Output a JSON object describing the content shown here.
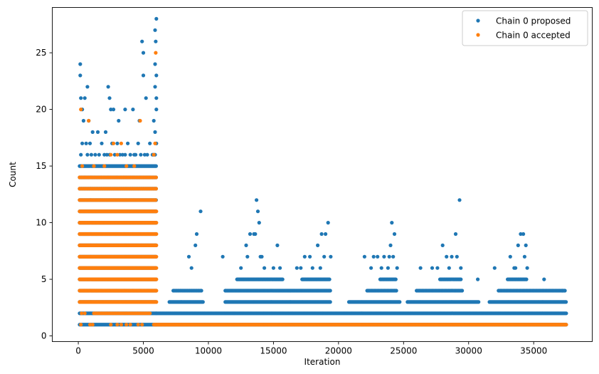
{
  "chart_data": {
    "type": "scatter",
    "title": "",
    "xlabel": "Iteration",
    "ylabel": "Count",
    "xlim": [
      -2000,
      39500
    ],
    "ylim": [
      -0.5,
      29
    ],
    "xticks": [
      0,
      5000,
      10000,
      15000,
      20000,
      25000,
      30000,
      35000
    ],
    "yticks": [
      0,
      5,
      10,
      15,
      20,
      25
    ],
    "grid": false,
    "legend_position": "top-right",
    "series": [
      {
        "name": "Chain 0 proposed",
        "color": "#1f77b4",
        "bands": [
          {
            "x_range": [
              100,
              6000
            ],
            "values": [
              1,
              2,
              3,
              4,
              5,
              6,
              7,
              8,
              9,
              10,
              11,
              12,
              13,
              14,
              15
            ],
            "step": 60
          },
          {
            "x_range": [
              6000,
              37500
            ],
            "values": [
              1,
              2
            ],
            "step": 60
          },
          {
            "x_range": [
              7000,
              9600
            ],
            "values": [
              3
            ],
            "step": 60
          },
          {
            "x_range": [
              7300,
              9500
            ],
            "values": [
              4
            ],
            "step": 90
          },
          {
            "x_range": [
              11300,
              16300
            ],
            "values": [
              3,
              4
            ],
            "step": 60
          },
          {
            "x_range": [
              12200,
              15700
            ],
            "values": [
              5
            ],
            "step": 70
          },
          {
            "x_range": [
              16300,
              19400
            ],
            "values": [
              3,
              4
            ],
            "step": 60
          },
          {
            "x_range": [
              17200,
              19300
            ],
            "values": [
              5
            ],
            "step": 70
          },
          {
            "x_range": [
              20800,
              24700
            ],
            "values": [
              3
            ],
            "step": 60
          },
          {
            "x_range": [
              22200,
              24500
            ],
            "values": [
              4
            ],
            "step": 70
          },
          {
            "x_range": [
              23200,
              24400
            ],
            "values": [
              5
            ],
            "step": 80
          },
          {
            "x_range": [
              25300,
              30800
            ],
            "values": [
              3
            ],
            "step": 60
          },
          {
            "x_range": [
              26000,
              29500
            ],
            "values": [
              4
            ],
            "step": 70
          },
          {
            "x_range": [
              27800,
              29400
            ],
            "values": [
              5
            ],
            "step": 80
          },
          {
            "x_range": [
              31600,
              37500
            ],
            "values": [
              3
            ],
            "step": 60
          },
          {
            "x_range": [
              32300,
              37400
            ],
            "values": [
              4
            ],
            "step": 70
          },
          {
            "x_range": [
              33000,
              34500
            ],
            "values": [
              5
            ],
            "step": 80
          }
        ],
        "points": [
          [
            150,
            24
          ],
          [
            150,
            23
          ],
          [
            700,
            22
          ],
          [
            2300,
            22
          ],
          [
            4900,
            26
          ],
          [
            5000,
            25
          ],
          [
            6000,
            28
          ],
          [
            5900,
            27
          ],
          [
            5950,
            26
          ],
          [
            5900,
            24
          ],
          [
            6000,
            23
          ],
          [
            200,
            21
          ],
          [
            300,
            20
          ],
          [
            500,
            21
          ],
          [
            2400,
            21
          ],
          [
            5000,
            23
          ],
          [
            5900,
            22
          ],
          [
            6000,
            21
          ],
          [
            6000,
            20
          ],
          [
            400,
            19
          ],
          [
            800,
            19
          ],
          [
            1100,
            18
          ],
          [
            1500,
            18
          ],
          [
            2100,
            18
          ],
          [
            2500,
            20
          ],
          [
            2700,
            20
          ],
          [
            3100,
            19
          ],
          [
            3600,
            20
          ],
          [
            4200,
            20
          ],
          [
            4700,
            19
          ],
          [
            5200,
            21
          ],
          [
            5800,
            19
          ],
          [
            5900,
            18
          ],
          [
            6000,
            17
          ],
          [
            300,
            17
          ],
          [
            600,
            17
          ],
          [
            900,
            17
          ],
          [
            1300,
            16
          ],
          [
            1800,
            17
          ],
          [
            2200,
            16
          ],
          [
            2600,
            17
          ],
          [
            3000,
            17
          ],
          [
            3400,
            16
          ],
          [
            3800,
            17
          ],
          [
            4300,
            16
          ],
          [
            4600,
            17
          ],
          [
            5100,
            16
          ],
          [
            5500,
            17
          ],
          [
            5800,
            16
          ],
          [
            200,
            16
          ],
          [
            700,
            16
          ],
          [
            1000,
            16
          ],
          [
            1600,
            16
          ],
          [
            2000,
            16
          ],
          [
            2400,
            16
          ],
          [
            2800,
            16
          ],
          [
            3200,
            16
          ],
          [
            3600,
            16
          ],
          [
            4000,
            16
          ],
          [
            4400,
            16
          ],
          [
            4800,
            16
          ],
          [
            5300,
            16
          ],
          [
            5700,
            16
          ],
          [
            5900,
            16
          ],
          [
            9100,
            9
          ],
          [
            9400,
            11
          ],
          [
            9000,
            8
          ],
          [
            8500,
            7
          ],
          [
            8700,
            6
          ],
          [
            11100,
            7
          ],
          [
            12900,
            8
          ],
          [
            13200,
            9
          ],
          [
            13500,
            9
          ],
          [
            13700,
            12
          ],
          [
            13800,
            11
          ],
          [
            13900,
            10
          ],
          [
            13600,
            9
          ],
          [
            14000,
            7
          ],
          [
            14100,
            7
          ],
          [
            15300,
            8
          ],
          [
            12500,
            6
          ],
          [
            13000,
            7
          ],
          [
            14300,
            6
          ],
          [
            15000,
            6
          ],
          [
            15500,
            6
          ],
          [
            16800,
            6
          ],
          [
            17400,
            7
          ],
          [
            17800,
            7
          ],
          [
            18400,
            8
          ],
          [
            18700,
            9
          ],
          [
            18900,
            7
          ],
          [
            19200,
            10
          ],
          [
            19000,
            9
          ],
          [
            18600,
            6
          ],
          [
            19400,
            7
          ],
          [
            17100,
            6
          ],
          [
            18000,
            6
          ],
          [
            22000,
            7
          ],
          [
            22700,
            7
          ],
          [
            23000,
            7
          ],
          [
            23500,
            7
          ],
          [
            23900,
            7
          ],
          [
            24100,
            10
          ],
          [
            24300,
            9
          ],
          [
            24000,
            8
          ],
          [
            23800,
            6
          ],
          [
            23300,
            6
          ],
          [
            22500,
            6
          ],
          [
            24500,
            6
          ],
          [
            24200,
            7
          ],
          [
            26300,
            6
          ],
          [
            27200,
            6
          ],
          [
            28000,
            8
          ],
          [
            28300,
            7
          ],
          [
            28700,
            7
          ],
          [
            29000,
            9
          ],
          [
            29300,
            12
          ],
          [
            29100,
            7
          ],
          [
            28500,
            6
          ],
          [
            27600,
            6
          ],
          [
            29400,
            6
          ],
          [
            30700,
            5
          ],
          [
            32000,
            6
          ],
          [
            33200,
            7
          ],
          [
            33500,
            6
          ],
          [
            33800,
            8
          ],
          [
            34000,
            9
          ],
          [
            34200,
            9
          ],
          [
            34400,
            8
          ],
          [
            34300,
            7
          ],
          [
            33600,
            6
          ],
          [
            34500,
            6
          ],
          [
            35800,
            5
          ],
          [
            37200,
            4
          ],
          [
            37400,
            4
          ]
        ]
      },
      {
        "name": "Chain 0 accepted",
        "color": "#ff7f0e",
        "bands": [
          {
            "x_range": [
              100,
              6000
            ],
            "values": [
              3,
              4,
              5,
              6,
              7,
              8,
              9,
              10,
              11
            ],
            "step": 50
          },
          {
            "x_range": [
              100,
              6000
            ],
            "values": [
              12
            ],
            "step": 90
          },
          {
            "x_range": [
              100,
              6000
            ],
            "values": [
              13,
              14
            ],
            "step": 140
          },
          {
            "x_range": [
              1300,
              5500
            ],
            "values": [
              2
            ],
            "step": 120
          },
          {
            "x_range": [
              5800,
              37500
            ],
            "values": [
              1
            ],
            "step": 50
          }
        ],
        "points": [
          [
            5950,
            25
          ],
          [
            200,
            20
          ],
          [
            4750,
            19
          ],
          [
            800,
            19
          ],
          [
            2700,
            17
          ],
          [
            3300,
            17
          ],
          [
            5900,
            17
          ],
          [
            2500,
            16
          ],
          [
            3000,
            16
          ],
          [
            5800,
            16
          ],
          [
            300,
            15
          ],
          [
            1200,
            15
          ],
          [
            2000,
            15
          ],
          [
            3700,
            15
          ],
          [
            4300,
            15
          ],
          [
            250,
            2
          ],
          [
            500,
            2
          ],
          [
            900,
            1
          ],
          [
            1100,
            1
          ],
          [
            1200,
            2
          ],
          [
            200,
            1
          ],
          [
            2500,
            1
          ],
          [
            3000,
            1
          ],
          [
            3300,
            1
          ],
          [
            3700,
            1
          ],
          [
            4000,
            1
          ],
          [
            4600,
            1
          ],
          [
            4900,
            1
          ]
        ]
      }
    ]
  }
}
